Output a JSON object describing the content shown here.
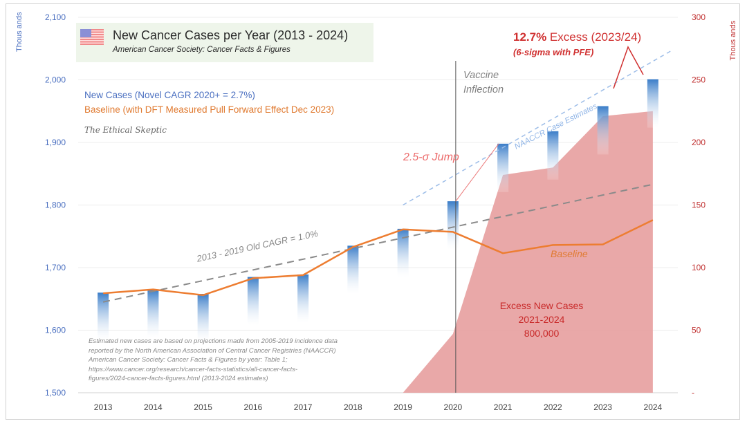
{
  "chart_data": {
    "type": "bar",
    "title": "New Cancer Cases per Year (2013 - 2024)",
    "subtitle": "American Cancer Society: Cancer Facts & Figures",
    "categories": [
      "2013",
      "2014",
      "2015",
      "2016",
      "2017",
      "2018",
      "2019",
      "2020",
      "2021",
      "2022",
      "2023",
      "2024"
    ],
    "left_axis": {
      "label": "Thous ands",
      "ylim": [
        1500,
        2100
      ],
      "ticks": [
        "1,500",
        "1,600",
        "1,700",
        "1,800",
        "1,900",
        "2,000",
        "2,100"
      ],
      "tick_values": [
        1500,
        1600,
        1700,
        1800,
        1900,
        2000,
        2100
      ]
    },
    "right_axis": {
      "label": "Thous ands",
      "ylim": [
        0,
        300
      ],
      "ticks": [
        "-",
        "50",
        "100",
        "150",
        "200",
        "250",
        "300"
      ],
      "tick_values": [
        0,
        50,
        100,
        150,
        200,
        250,
        300
      ]
    },
    "grid": true,
    "series": [
      {
        "name": "New Cases (Novel CAGR 2020+ = 2.7%)",
        "type": "bar",
        "axis": "left",
        "color": "#3a7dc8",
        "values": [
          1660,
          1665,
          1658,
          1685,
          1689,
          1735,
          1762,
          1806,
          1898,
          1918,
          1958,
          2001
        ]
      },
      {
        "name": "Baseline (with DFT Measured Pull Forward Effect Dec 2023)",
        "type": "line",
        "axis": "left",
        "color": "#ed7d31",
        "values": [
          1659,
          1665,
          1656,
          1683,
          1688,
          1733,
          1761,
          1757,
          1723,
          1736,
          1737,
          1776
        ]
      },
      {
        "name": "Excess New Cases",
        "type": "area",
        "axis": "right",
        "color": "#e8a3a3",
        "values": [
          null,
          null,
          null,
          null,
          null,
          null,
          0,
          47,
          174,
          180,
          221,
          225
        ]
      },
      {
        "name": "2013 - 2019 Old CAGR = 1.0%",
        "type": "trendline",
        "axis": "left",
        "color": "#8a8a8a",
        "start": {
          "x": "2013",
          "y": 1645
        },
        "end": {
          "x": "2024",
          "y": 1833
        }
      },
      {
        "name": "NAACCR Case Estimates",
        "type": "trendline",
        "axis": "left",
        "color": "#9dbde8",
        "start": {
          "x": "2019",
          "y": 1800
        },
        "end": {
          "x": "2024.4",
          "y": 2048
        }
      }
    ],
    "annotations": {
      "legend_new": "New Cases (Novel CAGR 2020+ = 2.7%)",
      "legend_baseline": "Baseline (with DFT Measured Pull Forward Effect Dec 2023)",
      "brand": "The Ethical Skeptic",
      "excess_pct": "12.7%",
      "excess_rest": " Excess (2023/24)",
      "excess_sigma": "(6-sigma with PFE)",
      "vaccine_1": "Vaccine",
      "vaccine_2": "Inflection",
      "vaccine_x": "2020",
      "jump": "2.5-σ Jump",
      "baseline_label": "Baseline",
      "old_cagr": "2013 - 2019 Old CAGR = 1.0%",
      "naaccr": "NAACCR Case Estimates",
      "excess_box": [
        "Excess New Cases",
        "2021-2024",
        "800,000"
      ],
      "note": [
        "Estimated new cases are based on projections made from 2005-2019 incidence data",
        "reported by the North American Association of Central Cancer Registries (NAACCR)",
        "American Cancer Society:  Cancer Facts & Figures  by year: Table  1;",
        "https://www.cancer.org/research/cancer-facts-statistics/all-cancer-facts-",
        "figures/2024-cancer-facts-figures.html (2013-2024 estimates)"
      ]
    },
    "colors": {
      "left_axis": "#4a6fc0",
      "right_axis": "#c03030",
      "callout": "#d03030",
      "title_bg": "#eef5ea"
    }
  }
}
